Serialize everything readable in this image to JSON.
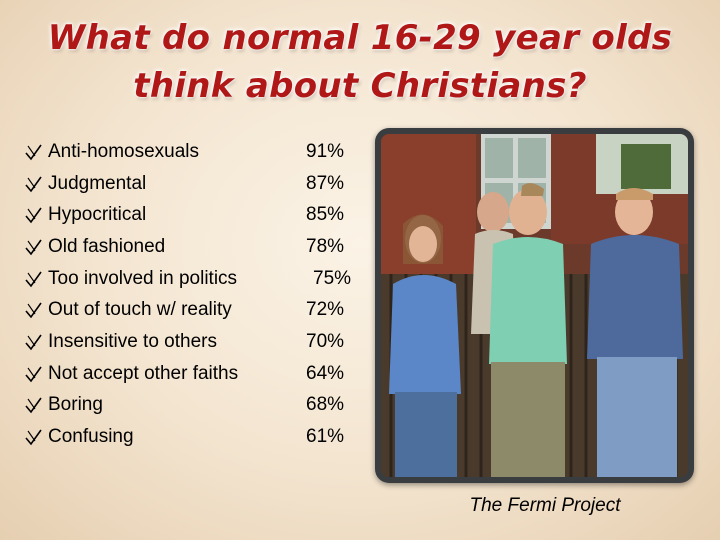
{
  "title": {
    "line1": "What do normal 16-29 year olds",
    "line2": "think about Christians?"
  },
  "bullet_icon": "pencil-check-icon",
  "items": [
    {
      "label": "Anti-homosexuals",
      "percent": "91%"
    },
    {
      "label": "Judgmental",
      "percent": "87%"
    },
    {
      "label": "Hypocritical",
      "percent": "85%"
    },
    {
      "label": "Old fashioned",
      "percent": "78%"
    },
    {
      "label": "Too involved in politics",
      "percent": "75%"
    },
    {
      "label": "Out of touch w/ reality",
      "percent": "72%"
    },
    {
      "label": "Insensitive to others",
      "percent": "70%"
    },
    {
      "label": "Not accept other faiths",
      "percent": "64%"
    },
    {
      "label": "Boring",
      "percent": "68%"
    },
    {
      "label": "Confusing",
      "percent": "61%"
    }
  ],
  "credit": "The Fermi  Project",
  "colors": {
    "title": "#b01818",
    "background": "#f3e4cf"
  }
}
